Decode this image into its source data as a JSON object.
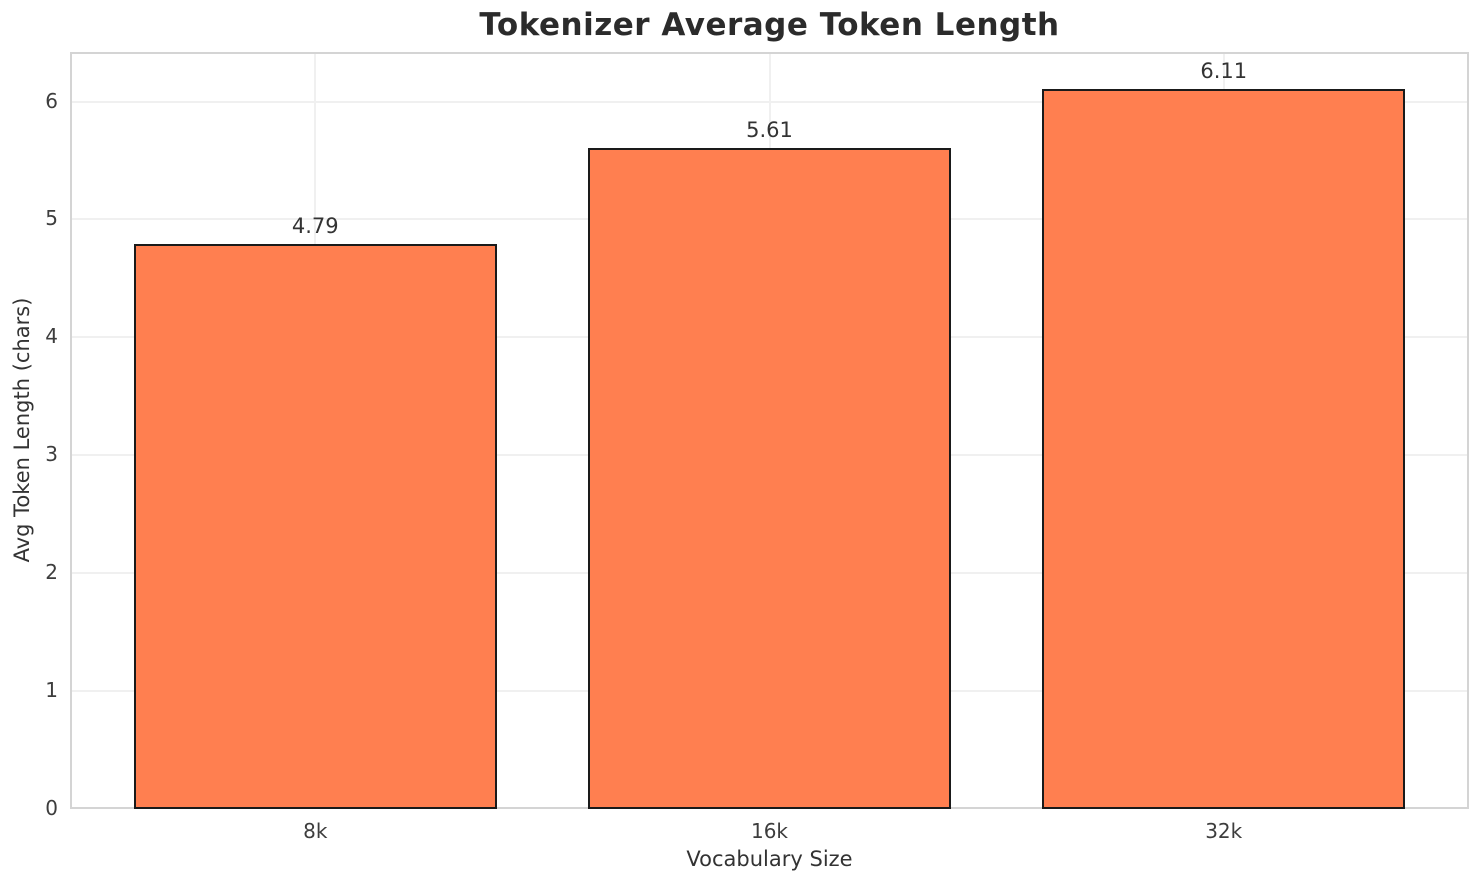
{
  "chart_data": {
    "type": "bar",
    "title": "Tokenizer Average Token Length",
    "xlabel": "Vocabulary Size",
    "ylabel": "Avg Token Length (chars)",
    "categories": [
      "8k",
      "16k",
      "32k"
    ],
    "values": [
      4.79,
      5.61,
      6.11
    ],
    "bar_labels": [
      "4.79",
      "5.61",
      "6.11"
    ],
    "yticks": [
      "0",
      "1",
      "2",
      "3",
      "4",
      "5",
      "6"
    ],
    "ytick_values": [
      0,
      1,
      2,
      3,
      4,
      5,
      6
    ],
    "ylim": [
      0,
      6.42
    ],
    "xlim": [
      -0.54,
      2.54
    ],
    "bar_width": 0.8,
    "grid": true,
    "legend": false,
    "colors": {
      "bar_fill": "#FF7F50",
      "bar_edge": "#1A1A1A",
      "grid_line": "#F0F0F0",
      "spine": "#D4D4D4",
      "title_text": "#2B2B2B",
      "tick_text": "#3D3D3D",
      "background": "#FFFFFF"
    }
  }
}
